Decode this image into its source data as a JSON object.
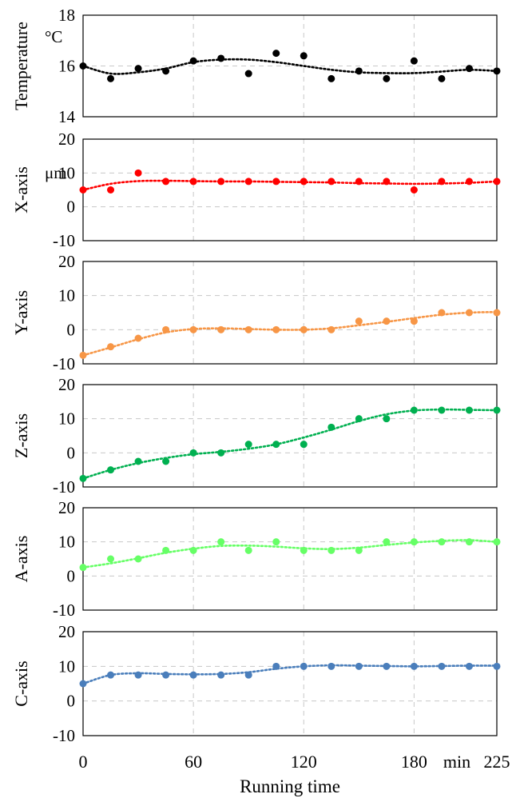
{
  "chart_data": [
    {
      "type": "scatter",
      "ylabel": "Temperature",
      "unit": "°C",
      "ylim": [
        14,
        18
      ],
      "yticks": [
        "14",
        "16",
        "18"
      ],
      "color": "#000000",
      "x": [
        0,
        15,
        30,
        45,
        60,
        75,
        90,
        105,
        120,
        135,
        150,
        165,
        180,
        195,
        210,
        225
      ],
      "values": [
        16.0,
        15.5,
        15.9,
        15.8,
        16.2,
        16.3,
        15.7,
        16.5,
        16.4,
        15.5,
        15.8,
        15.5,
        16.2,
        15.5,
        15.9,
        15.8
      ],
      "trend": [
        16.0,
        15.7,
        15.75,
        15.9,
        16.15,
        16.25,
        16.25,
        16.15,
        16.0,
        15.85,
        15.75,
        15.72,
        15.72,
        15.78,
        15.85,
        15.8
      ]
    },
    {
      "type": "scatter",
      "ylabel": "X-axis",
      "unit": "μm",
      "ylim": [
        -10,
        20
      ],
      "yticks": [
        "-10",
        "0",
        "10",
        "20"
      ],
      "color": "#ff0000",
      "x": [
        0,
        15,
        30,
        45,
        60,
        75,
        90,
        105,
        120,
        135,
        150,
        165,
        180,
        195,
        210,
        225
      ],
      "values": [
        5,
        5,
        10,
        7.5,
        7.5,
        7.5,
        7.5,
        7.5,
        7.5,
        7.5,
        7.5,
        7.5,
        5,
        7.5,
        7.5,
        7.5
      ],
      "trend": [
        5,
        6.8,
        7.6,
        7.7,
        7.6,
        7.5,
        7.5,
        7.4,
        7.3,
        7.2,
        7.0,
        6.9,
        6.8,
        6.9,
        7.1,
        7.5
      ]
    },
    {
      "type": "scatter",
      "ylabel": "Y-axis",
      "unit": "",
      "ylim": [
        -10,
        20
      ],
      "yticks": [
        "-10",
        "0",
        "10",
        "20"
      ],
      "color": "#f79646",
      "x": [
        0,
        15,
        30,
        45,
        60,
        75,
        90,
        105,
        120,
        135,
        150,
        165,
        180,
        195,
        210,
        225
      ],
      "values": [
        -7.5,
        -5,
        -2.5,
        0,
        0,
        0,
        0,
        0,
        0,
        0,
        2.5,
        2.5,
        2.5,
        5,
        5,
        5
      ],
      "trend": [
        -7.5,
        -5.2,
        -2.8,
        -0.8,
        0.2,
        0.4,
        0.2,
        0.0,
        0.0,
        0.4,
        1.3,
        2.3,
        3.4,
        4.4,
        5.0,
        5.2
      ]
    },
    {
      "type": "scatter",
      "ylabel": "Z-axis",
      "unit": "",
      "ylim": [
        -10,
        20
      ],
      "yticks": [
        "-10",
        "0",
        "10",
        "20"
      ],
      "color": "#00b050",
      "x": [
        0,
        15,
        30,
        45,
        60,
        75,
        90,
        105,
        120,
        135,
        150,
        165,
        180,
        195,
        210,
        225
      ],
      "values": [
        -7.5,
        -5,
        -2.5,
        -2.5,
        0,
        0,
        2.5,
        2.5,
        2.5,
        7.5,
        10,
        10,
        12.5,
        12.5,
        12.5,
        12.5
      ],
      "trend": [
        -7.5,
        -5.0,
        -3.0,
        -1.5,
        -0.4,
        0.3,
        1.2,
        2.5,
        4.5,
        6.8,
        9.3,
        11.3,
        12.4,
        12.7,
        12.6,
        12.5
      ]
    },
    {
      "type": "scatter",
      "ylabel": "A-axis",
      "unit": "",
      "ylim": [
        -10,
        20
      ],
      "yticks": [
        "-10",
        "0",
        "10",
        "20"
      ],
      "color": "#66ff66",
      "x": [
        0,
        15,
        30,
        45,
        60,
        75,
        90,
        105,
        120,
        135,
        150,
        165,
        180,
        195,
        210,
        225
      ],
      "values": [
        2.5,
        5,
        5,
        7.5,
        7.5,
        10,
        7.5,
        10,
        7.5,
        7.5,
        7.5,
        10,
        10,
        10,
        10,
        10
      ],
      "trend": [
        2.5,
        3.7,
        5.2,
        6.8,
        8.0,
        8.8,
        8.9,
        8.6,
        8.1,
        7.9,
        8.3,
        9.1,
        9.8,
        10.3,
        10.5,
        10.0
      ]
    },
    {
      "type": "scatter",
      "ylabel": "C-axis",
      "unit": "",
      "ylim": [
        -10,
        20
      ],
      "yticks": [
        "-10",
        "0",
        "10",
        "20"
      ],
      "color": "#4a7ebb",
      "x": [
        0,
        15,
        30,
        45,
        60,
        75,
        90,
        105,
        120,
        135,
        150,
        165,
        180,
        195,
        210,
        225
      ],
      "values": [
        5,
        7.5,
        7.5,
        7.5,
        7.5,
        7.5,
        7.5,
        10,
        10,
        10,
        10,
        10,
        10,
        10,
        10,
        10
      ],
      "trend": [
        5,
        7.5,
        8.0,
        7.8,
        7.7,
        7.8,
        8.3,
        9.3,
        10.0,
        10.3,
        10.2,
        10.1,
        10.0,
        10.1,
        10.2,
        10.2
      ]
    }
  ],
  "x_axis": {
    "xlim": [
      0,
      225
    ],
    "tick_values": [
      0,
      60,
      120,
      180,
      225
    ],
    "tick_labels": [
      "0",
      "60",
      "120",
      "180",
      "225"
    ],
    "unit": "min",
    "label": "Running time",
    "grid_values": [
      60,
      120,
      180
    ]
  }
}
